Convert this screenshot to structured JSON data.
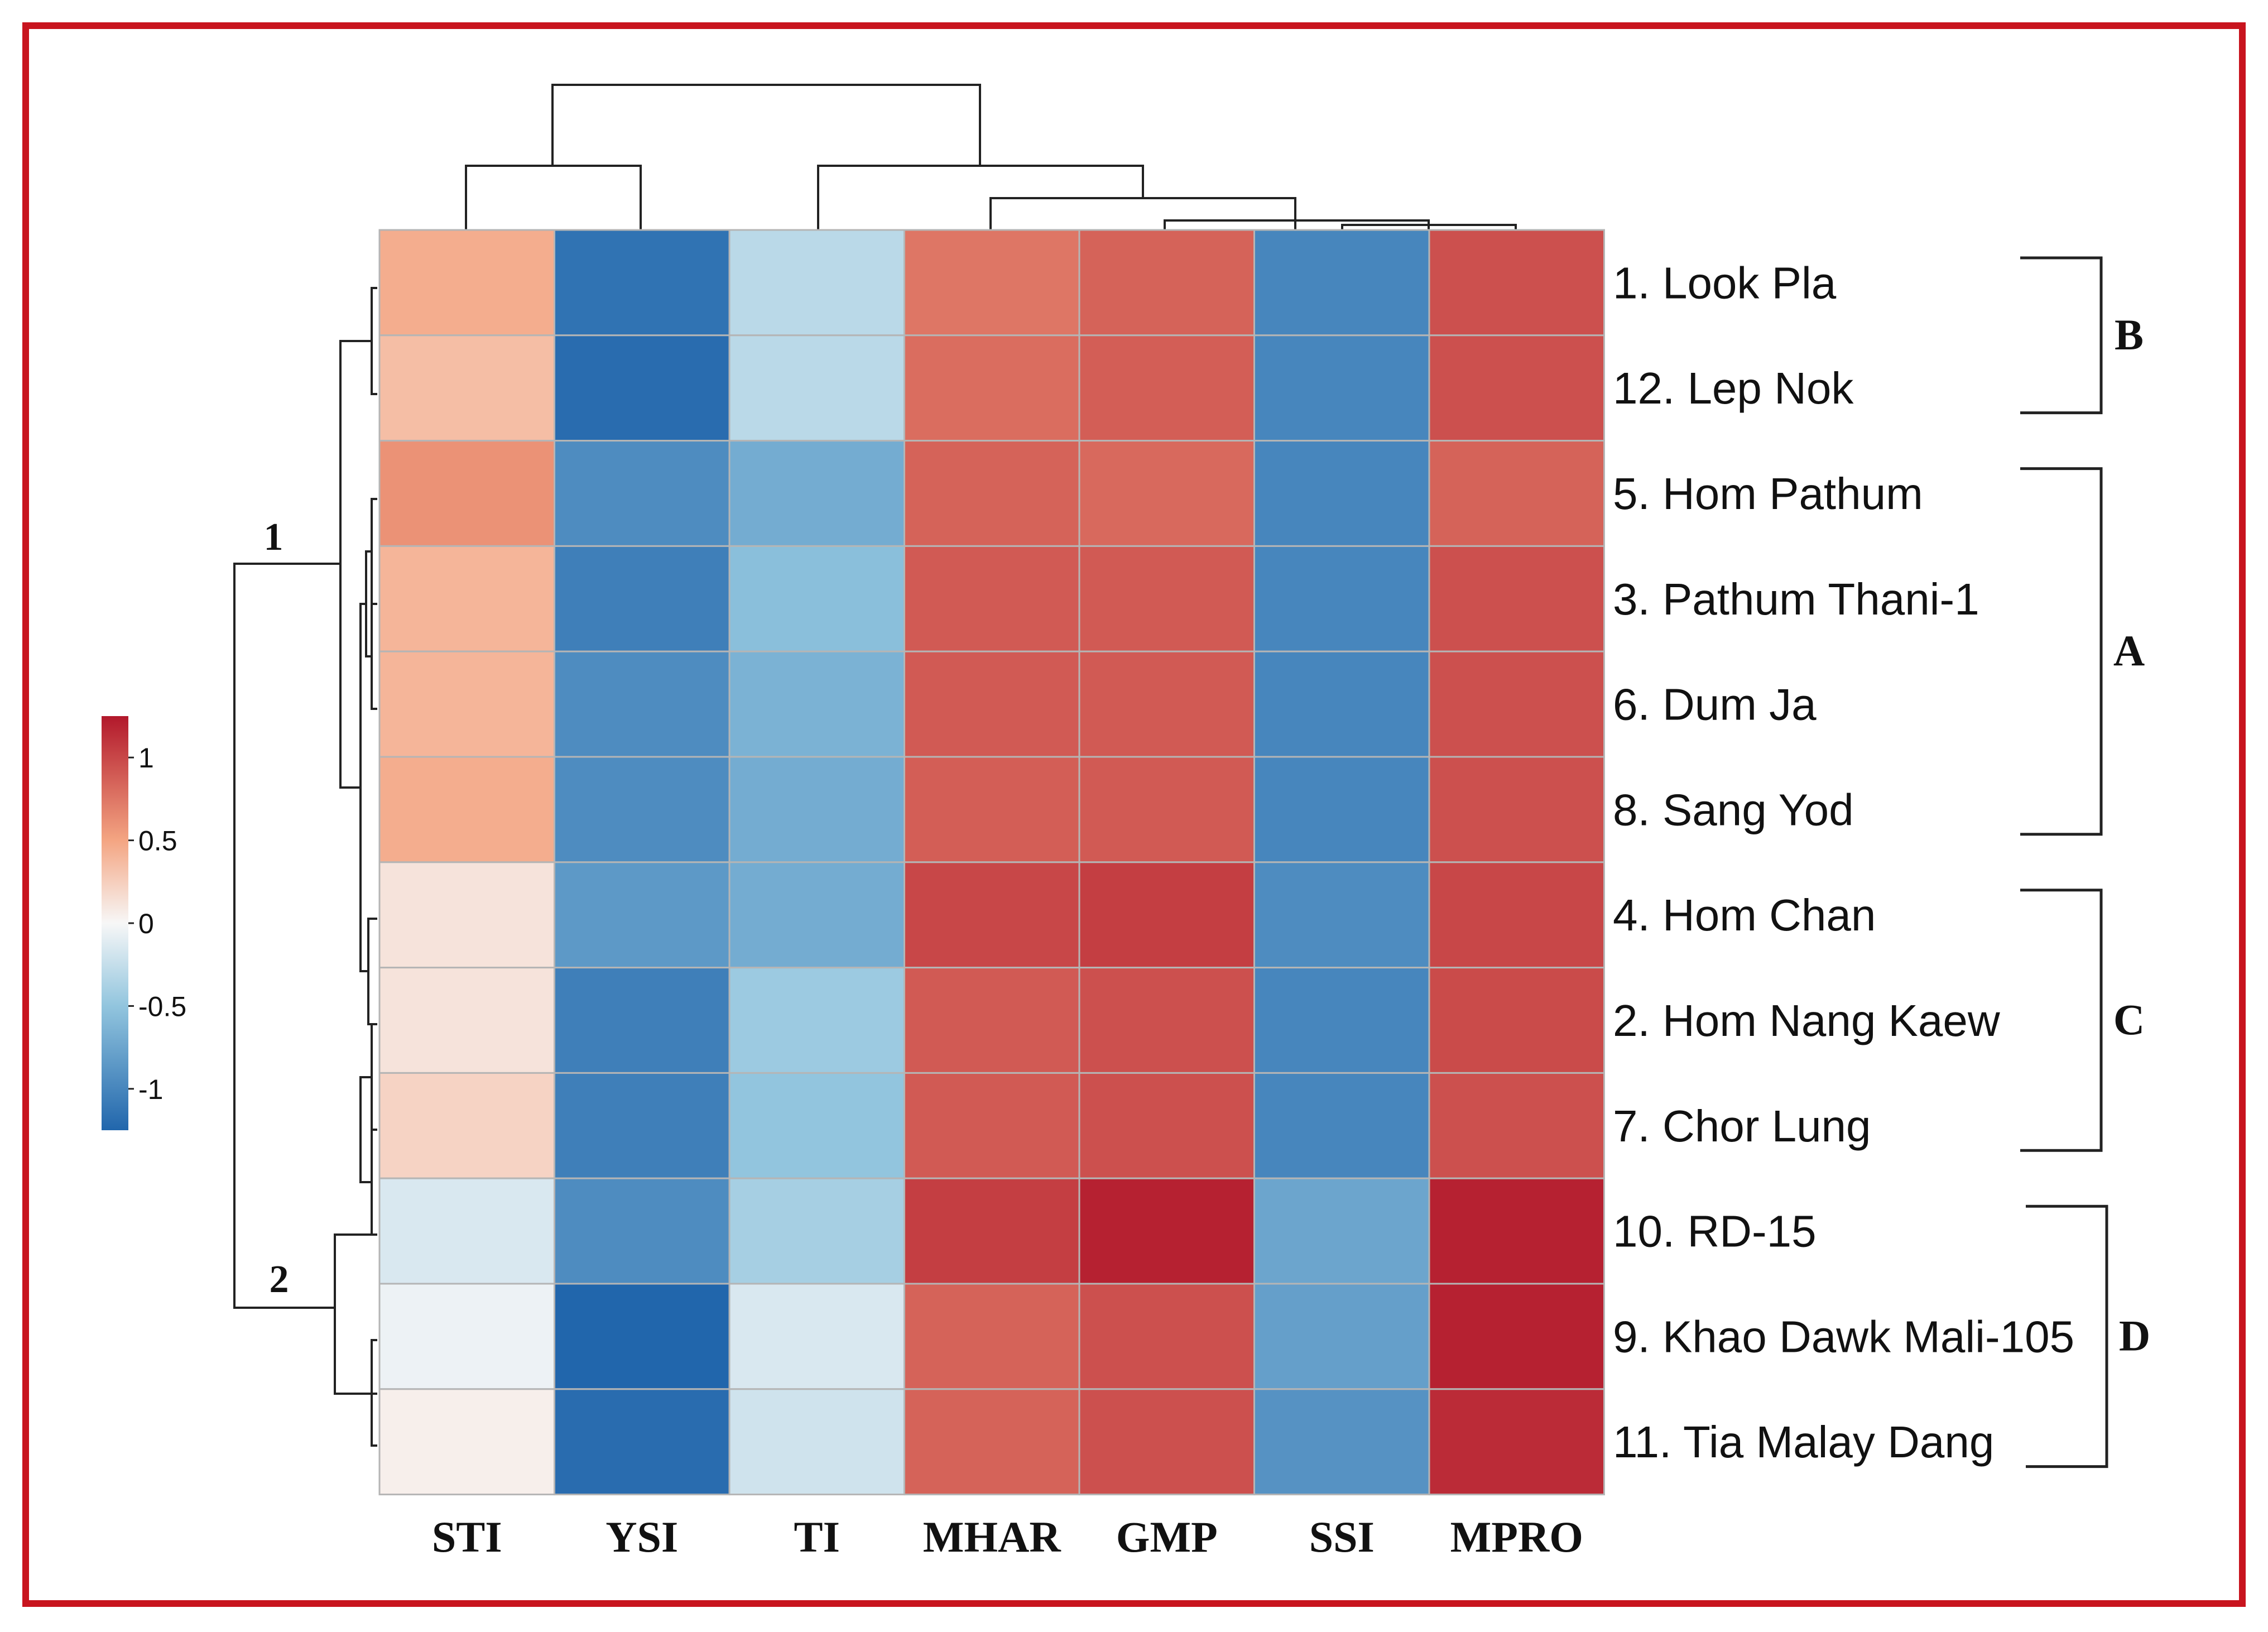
{
  "chart_data": {
    "type": "heatmap",
    "title": "",
    "xlabel": "",
    "ylabel": "",
    "columns": [
      "STI",
      "YSI",
      "TI",
      "MHAR",
      "GMP",
      "SSI",
      "MPRO"
    ],
    "rows": [
      "1. Look Pla",
      "12. Lep Nok",
      "5. Hom Pathum",
      "3. Pathum Thani-1",
      "6. Dum Ja",
      "8. Sang Yod",
      "4. Hom Chan",
      "2. Hom Nang Kaew",
      "7. Chor Lung",
      "10. RD-15",
      "9. Khao Dawk Mali-105",
      "11. Tia Malay Dang"
    ],
    "values": [
      [
        0.45,
        -1.15,
        -0.3,
        0.75,
        0.85,
        -1.0,
        0.95
      ],
      [
        0.35,
        -1.2,
        -0.3,
        0.8,
        0.88,
        -1.0,
        0.95
      ],
      [
        0.6,
        -0.95,
        -0.7,
        0.85,
        0.82,
        -1.0,
        0.85
      ],
      [
        0.4,
        -1.05,
        -0.55,
        0.9,
        0.9,
        -1.0,
        0.95
      ],
      [
        0.4,
        -0.95,
        -0.65,
        0.9,
        0.9,
        -1.0,
        0.95
      ],
      [
        0.45,
        -0.95,
        -0.7,
        0.88,
        0.9,
        -1.0,
        0.95
      ],
      [
        0.12,
        -0.85,
        -0.7,
        1.0,
        1.05,
        -0.95,
        1.0
      ],
      [
        0.12,
        -1.05,
        -0.45,
        0.9,
        0.95,
        -1.0,
        0.98
      ],
      [
        0.22,
        -1.05,
        -0.5,
        0.9,
        0.95,
        -1.0,
        0.95
      ],
      [
        -0.15,
        -0.95,
        -0.4,
        1.05,
        1.2,
        -0.75,
        1.2
      ],
      [
        -0.05,
        -1.25,
        -0.15,
        0.85,
        0.95,
        -0.8,
        1.2
      ],
      [
        0.05,
        -1.2,
        -0.2,
        0.85,
        0.95,
        -0.9,
        1.15
      ]
    ],
    "colorbar": {
      "ticks": [
        1,
        0.5,
        0,
        -0.5,
        -1
      ],
      "range": [
        -1.25,
        1.25
      ],
      "colors": {
        "low": "#2166ac",
        "mid": "#f7f7f7",
        "high": "#b2182b"
      }
    },
    "groups": [
      {
        "label": "B",
        "rows": [
          "1. Look Pla",
          "12. Lep Nok"
        ]
      },
      {
        "label": "A",
        "rows": [
          "5. Hom Pathum",
          "3. Pathum Thani-1",
          "6. Dum Ja",
          "8. Sang Yod"
        ]
      },
      {
        "label": "C",
        "rows": [
          "4. Hom Chan",
          "2. Hom Nang Kaew",
          "7. Chor Lung"
        ]
      },
      {
        "label": "D",
        "rows": [
          "10. RD-15",
          "9. Khao Dawk Mali-105",
          "11. Tia Malay Dang"
        ]
      }
    ],
    "row_clusters": [
      "1",
      "2"
    ]
  },
  "colors": {
    "frame": "#c8141e",
    "grid": "#b5b5b5",
    "line": "#222222"
  }
}
